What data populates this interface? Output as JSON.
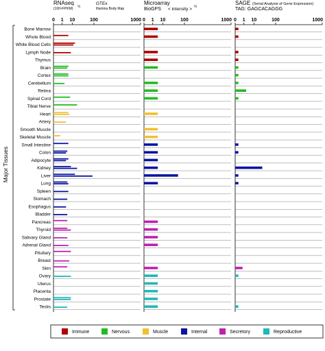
{
  "panels": {
    "rnaseq": {
      "title": "RNAseq",
      "unit_line": "(100×FPKM)",
      "unit_exp": "⅓",
      "link1": "GTEx",
      "link2": "Illumina Body Map",
      "ticks": [
        "0",
        "1",
        "10",
        "100",
        "1000"
      ]
    },
    "microarray": {
      "title": "Microarray",
      "link": "BioGPS",
      "intensity_label": "< intensity >",
      "intensity_exp": "⅔",
      "ticks": [
        "0",
        "1",
        "10",
        "100",
        "1000"
      ]
    },
    "sage": {
      "title": "SAGE",
      "subtitle": "(Serial Analysis of Gene Expression)",
      "tag": "TAG: GAGCACAGGG",
      "ticks": [
        "0",
        "1",
        "10",
        "100",
        "1000"
      ]
    }
  },
  "y_axis_label": "Major Tissues",
  "colors": {
    "Immune": "#b00000",
    "Nervous": "#22bb22",
    "Muscle": "#f0c030",
    "Internal": "#0a14a0",
    "Secretory": "#c020b0",
    "Reproductive": "#20b8b8",
    "link": "#1a1aa0",
    "gridline": "#999999"
  },
  "legend": [
    {
      "label": "Immune",
      "color": "#b00000"
    },
    {
      "label": "Nervous",
      "color": "#22bb22"
    },
    {
      "label": "Muscle",
      "color": "#f0c030"
    },
    {
      "label": "Internal",
      "color": "#0a14a0"
    },
    {
      "label": "Secretory",
      "color": "#c020b0"
    },
    {
      "label": "Reproductive",
      "color": "#20b8b8"
    }
  ],
  "chart_data": {
    "type": "bar",
    "orientation": "horizontal",
    "scale": "cube-root (0, 1, 10, 100, 1000)",
    "categories": [
      "Bone Marrow",
      "Whole Blood",
      "White Blood Cells",
      "Lymph Node",
      "Thymus",
      "Brain",
      "Cortex",
      "Cerebellum",
      "Retina",
      "Spinal Cord",
      "Tibial Nerve",
      "Heart",
      "Artery",
      "Smooth Muscle",
      "Skeletal Muscle",
      "Small Intestine",
      "Colon",
      "Adipocyte",
      "Kidney",
      "Liver",
      "Lung",
      "Spleen",
      "Stomach",
      "Esophagus",
      "Bladder",
      "Pancreas",
      "Thyroid",
      "Salivary Gland",
      "Adrenal Gland",
      "Pituitary",
      "Breast",
      "Skin",
      "Ovary",
      "Uterus",
      "Placenta",
      "Prostate",
      "Testis"
    ],
    "groups": [
      "Immune",
      "Immune",
      "Immune",
      "Immune",
      "Immune",
      "Nervous",
      "Nervous",
      "Nervous",
      "Nervous",
      "Nervous",
      "Nervous",
      "Muscle",
      "Muscle",
      "Muscle",
      "Muscle",
      "Internal",
      "Internal",
      "Internal",
      "Internal",
      "Internal",
      "Internal",
      "Internal",
      "Internal",
      "Internal",
      "Internal",
      "Secretory",
      "Secretory",
      "Secretory",
      "Secretory",
      "Secretory",
      "Secretory",
      "Secretory",
      "Reproductive",
      "Reproductive",
      "Reproductive",
      "Reproductive",
      "Reproductive"
    ],
    "rnaseq": [
      {
        "name": "GTEx",
        "values": [
          null,
          5,
          15,
          null,
          null,
          5,
          5,
          null,
          null,
          7,
          20,
          5,
          null,
          null,
          0.5,
          5,
          4,
          5,
          8,
          15,
          4,
          null,
          null,
          null,
          null,
          4,
          4,
          null,
          null,
          8,
          null,
          4,
          null,
          null,
          null,
          8,
          null
        ]
      },
      {
        "name": "Illumina Body Map",
        "values": [
          null,
          null,
          12,
          8,
          null,
          4,
          5,
          2,
          null,
          null,
          null,
          6,
          3,
          null,
          null,
          null,
          3,
          3,
          20,
          90,
          5,
          5,
          4,
          3,
          4,
          null,
          8,
          4,
          5,
          null,
          6,
          null,
          8,
          null,
          null,
          8,
          4
        ]
      }
    ],
    "microarray": {
      "name": "BioGPS",
      "values": [
        4,
        4,
        null,
        4,
        4,
        4,
        null,
        4,
        4,
        4,
        null,
        4,
        null,
        4,
        4,
        4,
        4,
        4,
        4,
        60,
        4,
        null,
        null,
        null,
        null,
        4,
        4,
        4,
        4,
        null,
        null,
        4,
        4,
        4,
        4,
        4,
        4
      ]
    },
    "sage": {
      "name": "SAGE",
      "values": [
        0.05,
        0.05,
        null,
        0.05,
        0.05,
        0.05,
        0.05,
        0.05,
        2,
        0.05,
        null,
        null,
        null,
        null,
        null,
        0.05,
        0.05,
        null,
        30,
        0.05,
        0.05,
        null,
        null,
        null,
        null,
        null,
        null,
        null,
        null,
        null,
        null,
        0.6,
        0.05,
        null,
        null,
        null,
        0.05
      ]
    }
  }
}
